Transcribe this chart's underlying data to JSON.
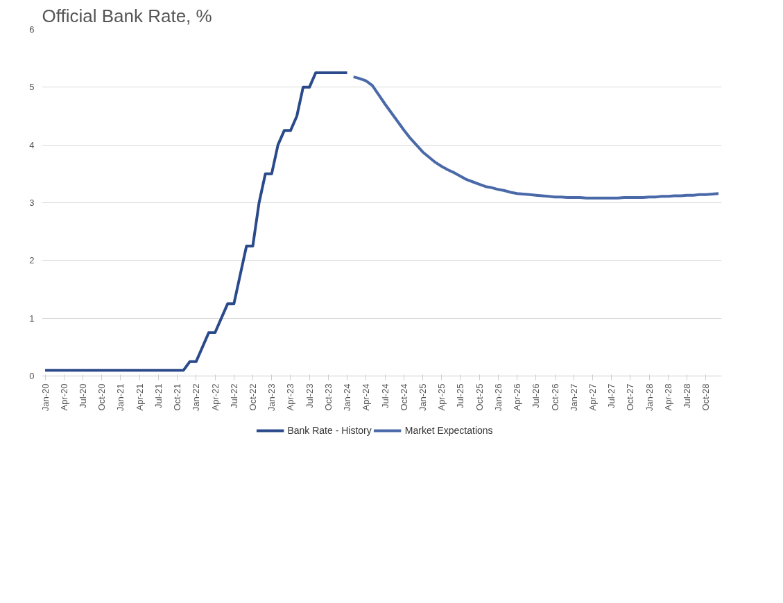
{
  "chart_data": {
    "type": "line",
    "title": "Official Bank Rate, %",
    "categories": [
      "Jan-20",
      null,
      null,
      "Apr-20",
      null,
      null,
      "Jul-20",
      null,
      null,
      "Oct-20",
      null,
      null,
      "Jan-21",
      null,
      null,
      "Apr-21",
      null,
      null,
      "Jul-21",
      null,
      null,
      "Oct-21",
      null,
      null,
      "Jan-22",
      null,
      null,
      "Apr-22",
      null,
      null,
      "Jul-22",
      null,
      null,
      "Oct-22",
      null,
      null,
      "Jan-23",
      null,
      null,
      "Apr-23",
      null,
      null,
      "Jul-23",
      null,
      null,
      "Oct-23",
      null,
      null,
      "Jan-24",
      null,
      null,
      "Apr-24",
      null,
      null,
      "Jul-24",
      null,
      null,
      "Oct-24",
      null,
      null,
      "Jan-25",
      null,
      null,
      "Apr-25",
      null,
      null,
      "Jul-25",
      null,
      null,
      "Oct-25",
      null,
      null,
      "Jan-26",
      null,
      null,
      "Apr-26",
      null,
      null,
      "Jul-26",
      null,
      null,
      "Oct-26",
      null,
      null,
      "Jan-27",
      null,
      null,
      "Apr-27",
      null,
      null,
      "Jul-27",
      null,
      null,
      "Oct-27",
      null,
      null,
      "Jan-28",
      null,
      null,
      "Apr-28",
      null,
      null,
      "Jul-28",
      null,
      null,
      "Oct-28",
      null,
      null
    ],
    "series": [
      {
        "name": "Bank Rate - History",
        "color": "#2b4a8b",
        "values": [
          0.1,
          0.1,
          0.1,
          0.1,
          0.1,
          0.1,
          0.1,
          0.1,
          0.1,
          0.1,
          0.1,
          0.1,
          0.1,
          0.1,
          0.1,
          0.1,
          0.1,
          0.1,
          0.1,
          0.1,
          0.1,
          0.1,
          0.1,
          0.25,
          0.25,
          0.5,
          0.75,
          0.75,
          1.0,
          1.25,
          1.25,
          1.75,
          2.25,
          2.25,
          3.0,
          3.5,
          3.5,
          4.0,
          4.25,
          4.25,
          4.5,
          5.0,
          5.0,
          5.25,
          5.25,
          5.25,
          5.25,
          5.25,
          5.25,
          null,
          null,
          null,
          null,
          null,
          null,
          null,
          null,
          null,
          null,
          null,
          null,
          null,
          null,
          null,
          null,
          null,
          null,
          null,
          null,
          null,
          null,
          null,
          null,
          null,
          null,
          null,
          null,
          null,
          null,
          null,
          null,
          null,
          null,
          null,
          null,
          null,
          null,
          null,
          null,
          null,
          null,
          null,
          null,
          null,
          null,
          null,
          null,
          null,
          null,
          null,
          null,
          null,
          null,
          null,
          null,
          null,
          null,
          null
        ]
      },
      {
        "name": "Market Expectations",
        "color": "#4a69a8",
        "values": [
          null,
          null,
          null,
          null,
          null,
          null,
          null,
          null,
          null,
          null,
          null,
          null,
          null,
          null,
          null,
          null,
          null,
          null,
          null,
          null,
          null,
          null,
          null,
          null,
          null,
          null,
          null,
          null,
          null,
          null,
          null,
          null,
          null,
          null,
          null,
          null,
          null,
          null,
          null,
          null,
          null,
          null,
          null,
          null,
          null,
          null,
          null,
          null,
          null,
          5.18,
          5.15,
          5.11,
          5.03,
          4.87,
          4.71,
          4.56,
          4.41,
          4.26,
          4.12,
          4.0,
          3.88,
          3.79,
          3.7,
          3.63,
          3.57,
          3.52,
          3.46,
          3.4,
          3.36,
          3.32,
          3.28,
          3.26,
          3.23,
          3.21,
          3.18,
          3.16,
          3.15,
          3.14,
          3.13,
          3.12,
          3.11,
          3.1,
          3.1,
          3.09,
          3.09,
          3.09,
          3.08,
          3.08,
          3.08,
          3.08,
          3.08,
          3.08,
          3.09,
          3.09,
          3.09,
          3.09,
          3.1,
          3.1,
          3.11,
          3.11,
          3.12,
          3.12,
          3.13,
          3.13,
          3.14,
          3.14,
          3.15,
          3.16
        ]
      }
    ],
    "ylim": [
      0,
      6
    ],
    "yticks": [
      0,
      1,
      2,
      3,
      4,
      5,
      6
    ],
    "grid": "y",
    "legend": "bottom",
    "marker": "none",
    "line_style": "solid"
  }
}
